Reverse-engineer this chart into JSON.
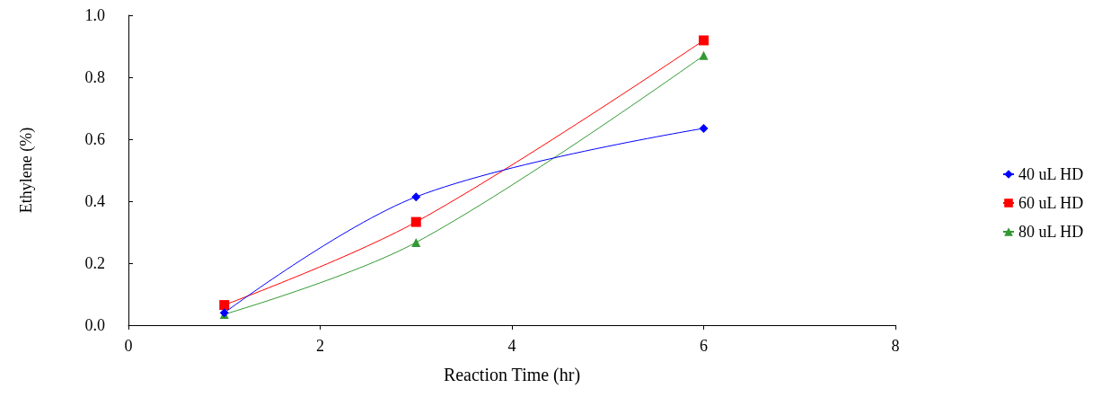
{
  "chart_data": {
    "type": "line",
    "xlabel": "Reaction Time (hr)",
    "ylabel": "Ethylene (%)",
    "xlim": [
      0,
      8
    ],
    "xticks": [
      0,
      2,
      4,
      6,
      8
    ],
    "ylim": [
      0,
      1.0
    ],
    "yticks": [
      {
        "value": 0,
        "label": "0.0"
      },
      {
        "value": 0.2,
        "label": "0.2"
      },
      {
        "value": 0.4,
        "label": "0.4"
      },
      {
        "value": 0.6,
        "label": "0.6"
      },
      {
        "value": 0.8,
        "label": "0.8"
      },
      {
        "value": 1.0,
        "label": "1.0"
      }
    ],
    "x": [
      1,
      3,
      6
    ],
    "grid": false,
    "legend": "right",
    "series": [
      {
        "name": "40 uL HD",
        "color": "#0000ff",
        "marker": "diamond",
        "values": [
          0.04,
          0.414,
          0.635
        ]
      },
      {
        "name": "60 uL HD",
        "color": "#ff0000",
        "marker": "square",
        "values": [
          0.065,
          0.333,
          0.919
        ]
      },
      {
        "name": "80 uL HD",
        "color": "#339933",
        "marker": "triangle",
        "values": [
          0.035,
          0.267,
          0.87
        ]
      }
    ]
  }
}
